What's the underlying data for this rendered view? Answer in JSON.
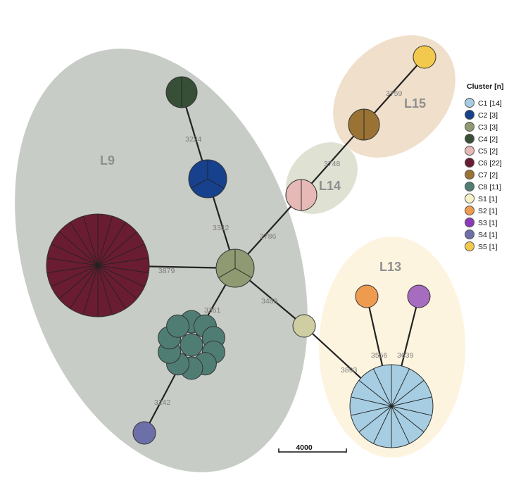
{
  "groups": [
    {
      "id": "L9",
      "label": "L9",
      "color": "#c8ccc6"
    },
    {
      "id": "L13",
      "label": "L13",
      "color": "#fdf4e0"
    },
    {
      "id": "L14",
      "label": "L14",
      "color": "#dfe2d3"
    },
    {
      "id": "L15",
      "label": "L15",
      "color": "#efdfcb"
    }
  ],
  "edge_labels": {
    "c4_c2": "3224",
    "c2_c3": "3342",
    "c6_c3": "3879",
    "c3_c8": "3361",
    "c3_c5": "3786",
    "c5_c7": "3748",
    "c7_s5": "3759",
    "c3_s1": "3489",
    "s1_c1": "3893",
    "s2_c1": "3556",
    "s3_c1": "3639",
    "c8_s4": "3242"
  },
  "legend": {
    "title": "Cluster [n]",
    "items": [
      {
        "id": "C1",
        "label": "C1 [14]",
        "color": "#a6cde2"
      },
      {
        "id": "C2",
        "label": "C2 [3]",
        "color": "#17418c"
      },
      {
        "id": "C3",
        "label": "C3 [3]",
        "color": "#8f9a72"
      },
      {
        "id": "C4",
        "label": "C4 [2]",
        "color": "#384f37"
      },
      {
        "id": "C5",
        "label": "C5 [2]",
        "color": "#e6b9b6"
      },
      {
        "id": "C6",
        "label": "C6 [22]",
        "color": "#6a1c32"
      },
      {
        "id": "C7",
        "label": "C7 [2]",
        "color": "#9a7334"
      },
      {
        "id": "C8",
        "label": "C8 [11]",
        "color": "#4f7d74"
      },
      {
        "id": "S1",
        "label": "S1 [1]",
        "color": "#f9f2c8"
      },
      {
        "id": "S2",
        "label": "S2 [1]",
        "color": "#ee9b50"
      },
      {
        "id": "S3",
        "label": "S3 [1]",
        "color": "#8a3ab9"
      },
      {
        "id": "S4",
        "label": "S4 [1]",
        "color": "#6d6fa8"
      },
      {
        "id": "S5",
        "label": "S5 [1]",
        "color": "#f2c94c"
      }
    ]
  },
  "nodes": {
    "c1_color": "#a6cde2",
    "c2_color": "#17418c",
    "c3_color": "#8f9a72",
    "c4_color": "#384f37",
    "c5_color": "#e6b9b6",
    "c6_color": "#6a1c32",
    "c7_color": "#9a7334",
    "c8_color": "#4f7d74",
    "s1_color": "#cfcea2",
    "s2_color": "#ee9b50",
    "s3_color": "#a56cc0",
    "s4_color": "#6d6fa8",
    "s5_color": "#f2c94c"
  },
  "scale_bar": {
    "label": "4000"
  }
}
